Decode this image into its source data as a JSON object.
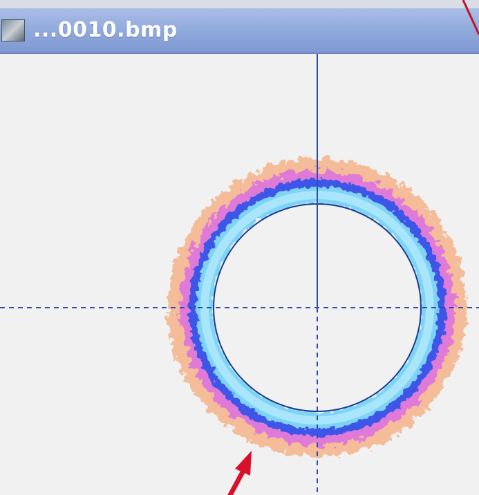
{
  "window": {
    "title": "...0010.bmp"
  }
}
